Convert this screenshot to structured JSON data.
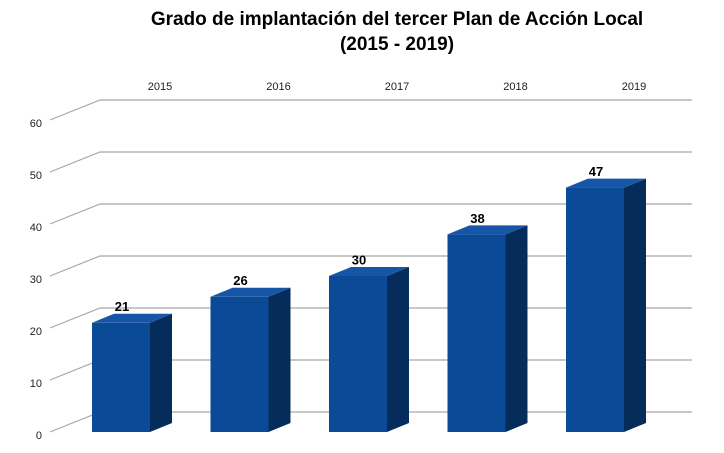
{
  "chart_data": {
    "type": "bar3d",
    "title": "Grado de implantación del tercer Plan de Acción Local",
    "subtitle": "(2015 - 2019)",
    "categories": [
      "2015",
      "2016",
      "2017",
      "2018",
      "2019"
    ],
    "values": [
      21,
      26,
      30,
      38,
      47
    ],
    "color": "#0b4a97",
    "ylim": [
      0,
      60
    ],
    "yticks": [
      0,
      10,
      20,
      30,
      40,
      50,
      60
    ],
    "grid": true
  }
}
